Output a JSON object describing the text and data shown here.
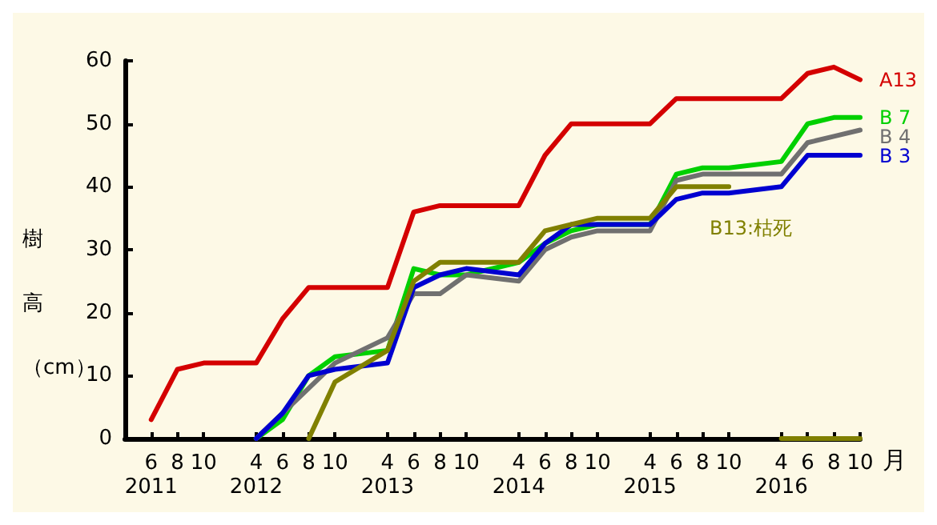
{
  "chart_data": {
    "type": "line",
    "xlabel": "月",
    "ylabel": "樹高（cm）",
    "categories": [
      null,
      "6\n2011",
      "8",
      "10",
      null,
      "4\n2012",
      "6",
      "8",
      "10",
      null,
      "4\n2013",
      "6",
      "8",
      "10",
      null,
      "4\n2014",
      "6",
      "8",
      "10",
      null,
      "4\n2015",
      "6",
      "8",
      "10",
      null,
      "4\n2016",
      "6",
      "8",
      "10"
    ],
    "ylim": [
      0,
      60
    ],
    "yticks": [
      0,
      10,
      20,
      30,
      40,
      50,
      60
    ],
    "grid": false,
    "legend": false,
    "marker": "none",
    "line_style": "solid",
    "series": [
      {
        "name": "A13",
        "color": "#d40000",
        "values": [
          null,
          3,
          11,
          12,
          null,
          12,
          19,
          24,
          24,
          null,
          24,
          36,
          37,
          37,
          null,
          37,
          45,
          50,
          50,
          null,
          50,
          54,
          54,
          54,
          null,
          54,
          58,
          59,
          57
        ]
      },
      {
        "name": "B 7",
        "color": "#00d000",
        "values": [
          null,
          null,
          null,
          null,
          null,
          0,
          3,
          10,
          13,
          null,
          14,
          27,
          26,
          26,
          null,
          28,
          31,
          33,
          34,
          null,
          34,
          42,
          43,
          43,
          null,
          44,
          50,
          51,
          51
        ]
      },
      {
        "name": "B 4",
        "color": "#707070",
        "values": [
          null,
          null,
          null,
          null,
          null,
          0,
          4,
          8,
          12,
          null,
          16,
          23,
          23,
          26,
          null,
          25,
          30,
          32,
          33,
          null,
          33,
          41,
          42,
          42,
          null,
          42,
          47,
          48,
          49
        ]
      },
      {
        "name": "B 3",
        "color": "#0000d0",
        "values": [
          null,
          null,
          null,
          null,
          null,
          0,
          4,
          10,
          11,
          null,
          12,
          24,
          26,
          27,
          null,
          26,
          31,
          34,
          34,
          null,
          34,
          38,
          39,
          39,
          null,
          40,
          45,
          45,
          45
        ]
      },
      {
        "name": "B13:枯死",
        "color": "#808000",
        "values": [
          null,
          null,
          null,
          null,
          null,
          null,
          null,
          0,
          9,
          null,
          14,
          25,
          28,
          28,
          null,
          28,
          33,
          34,
          35,
          null,
          35,
          40,
          40,
          40,
          null,
          null,
          null,
          null,
          null
        ]
      },
      {
        "color": "#808000",
        "values": [
          null,
          null,
          null,
          null,
          null,
          null,
          null,
          null,
          null,
          null,
          null,
          null,
          null,
          null,
          null,
          null,
          null,
          null,
          null,
          null,
          null,
          null,
          null,
          null,
          null,
          0,
          0,
          0,
          0
        ]
      }
    ]
  }
}
